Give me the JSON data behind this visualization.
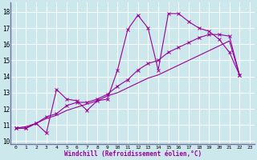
{
  "title": "",
  "xlabel": "Windchill (Refroidissement éolien,°C)",
  "bg_color": "#cce8ec",
  "line_color": "#990099",
  "grid_color": "#ffffff",
  "xlim": [
    -0.5,
    23.5
  ],
  "ylim": [
    9.8,
    18.6
  ],
  "yticks": [
    10,
    11,
    12,
    13,
    14,
    15,
    16,
    17,
    18
  ],
  "xticks": [
    0,
    1,
    2,
    3,
    4,
    5,
    6,
    7,
    8,
    9,
    10,
    11,
    12,
    13,
    14,
    15,
    16,
    17,
    18,
    19,
    20,
    21,
    22,
    23
  ],
  "line1_x": [
    0,
    1,
    2,
    3,
    4,
    5,
    6,
    7,
    8,
    9,
    10,
    11,
    12,
    13,
    14,
    15,
    16,
    17,
    18,
    19,
    20,
    21,
    22
  ],
  "line1_y": [
    10.8,
    10.8,
    11.1,
    10.5,
    13.2,
    12.6,
    12.5,
    11.9,
    12.5,
    12.6,
    14.4,
    16.9,
    17.8,
    17.0,
    14.4,
    17.9,
    17.9,
    17.4,
    17.0,
    16.8,
    16.3,
    15.5,
    14.1
  ],
  "line2_x": [
    0,
    1,
    2,
    3,
    4,
    5,
    6,
    7,
    8,
    9,
    10,
    11,
    12,
    13,
    14,
    15,
    16,
    17,
    18,
    19,
    20,
    21,
    22
  ],
  "line2_y": [
    10.8,
    10.8,
    11.1,
    11.5,
    11.7,
    12.2,
    12.4,
    12.4,
    12.6,
    12.9,
    13.4,
    13.8,
    14.4,
    14.8,
    15.0,
    15.5,
    15.8,
    16.1,
    16.4,
    16.6,
    16.6,
    16.5,
    14.1
  ],
  "line3_x": [
    0,
    1,
    2,
    3,
    4,
    5,
    6,
    7,
    8,
    9,
    10,
    11,
    12,
    13,
    14,
    15,
    16,
    17,
    18,
    19,
    20,
    21,
    22
  ],
  "line3_y": [
    10.8,
    10.9,
    11.1,
    11.4,
    11.6,
    11.9,
    12.1,
    12.3,
    12.5,
    12.8,
    13.0,
    13.3,
    13.6,
    13.9,
    14.1,
    14.4,
    14.7,
    15.0,
    15.3,
    15.6,
    15.9,
    16.2,
    14.1
  ],
  "marker_size": 2.5,
  "linewidth": 0.8
}
